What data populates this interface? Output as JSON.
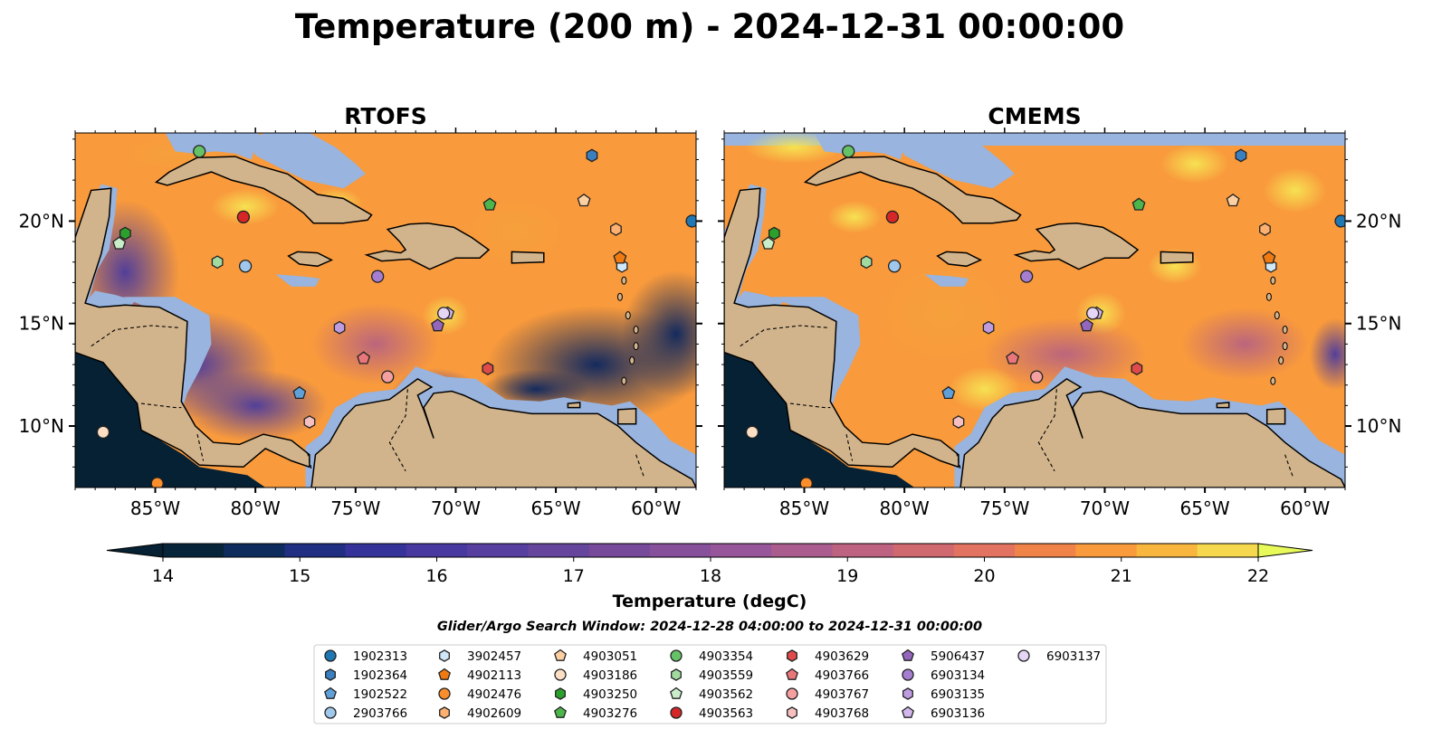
{
  "title": "Temperature (200 m) - 2024-12-31 00:00:00",
  "panels": [
    {
      "id": "rtofs",
      "title": "RTOFS"
    },
    {
      "id": "cmems",
      "title": "CMEMS"
    }
  ],
  "map": {
    "lon_range": [
      -89,
      -58
    ],
    "lat_range": [
      7,
      24.3
    ],
    "lon_ticks": [
      {
        "value": -85,
        "label": "85°W"
      },
      {
        "value": -80,
        "label": "80°W"
      },
      {
        "value": -75,
        "label": "75°W"
      },
      {
        "value": -70,
        "label": "70°W"
      },
      {
        "value": -65,
        "label": "65°W"
      },
      {
        "value": -60,
        "label": "60°W"
      }
    ],
    "lat_ticks": [
      {
        "value": 10,
        "label": "10°N"
      },
      {
        "value": 15,
        "label": "15°N"
      },
      {
        "value": 20,
        "label": "20°N"
      }
    ],
    "colors": {
      "land": "#d2b48c",
      "shelf": "#98b4df",
      "coast": "#000000"
    }
  },
  "colorbar": {
    "label": "Temperature (degC)",
    "min": 14,
    "max": 22,
    "step": 0.5,
    "ticks": [
      14,
      15,
      16,
      17,
      18,
      19,
      20,
      21,
      22
    ],
    "colors": [
      "#07253a",
      "#0d2b5c",
      "#212f82",
      "#35339a",
      "#47399f",
      "#563f9e",
      "#66459c",
      "#76499a",
      "#87509a",
      "#98569a",
      "#aa5c8e",
      "#bd6280",
      "#d0686f",
      "#e17360",
      "#f08448",
      "#f99a3c",
      "#f9b63f",
      "#f5d84e"
    ],
    "under_color": "#062133",
    "over_color": "#e7fa5a"
  },
  "search_window": "Glider/Argo Search Window: 2024-12-28 04:00:00 to 2024-12-31 00:00:00",
  "floats": [
    {
      "id": "1902313",
      "marker": "circle",
      "color": "#1f77b4",
      "lon": -58.2,
      "lat": 20.0
    },
    {
      "id": "1902364",
      "marker": "hexagon",
      "color": "#3a7fc0",
      "lon": -63.2,
      "lat": 23.2
    },
    {
      "id": "1902522",
      "marker": "pentagon",
      "color": "#5fa0d9",
      "lon": -77.8,
      "lat": 11.6
    },
    {
      "id": "2903766",
      "marker": "circle",
      "color": "#9fc8ec",
      "lon": -80.5,
      "lat": 17.8
    },
    {
      "id": "3902457",
      "marker": "hexagon",
      "color": "#cfe7f8",
      "lon": -61.7,
      "lat": 17.8
    },
    {
      "id": "4902113",
      "marker": "pentagon",
      "color": "#f07a12",
      "lon": -61.8,
      "lat": 18.2
    },
    {
      "id": "4902476",
      "marker": "circle",
      "color": "#fb8e2c",
      "lon": -84.9,
      "lat": 7.2
    },
    {
      "id": "4902609",
      "marker": "hexagon",
      "color": "#fdb070",
      "lon": -62.0,
      "lat": 19.6
    },
    {
      "id": "4903051",
      "marker": "pentagon",
      "color": "#fdd0a2",
      "lon": -63.6,
      "lat": 21.0
    },
    {
      "id": "4903186",
      "marker": "circle",
      "color": "#fde0c4",
      "lon": -87.6,
      "lat": 9.7
    },
    {
      "id": "4903250",
      "marker": "hexagon",
      "color": "#2ca02c",
      "lon": -86.5,
      "lat": 19.4
    },
    {
      "id": "4903276",
      "marker": "pentagon",
      "color": "#4cb64c",
      "lon": -68.3,
      "lat": 20.8
    },
    {
      "id": "4903354",
      "marker": "circle",
      "color": "#66c266",
      "lon": -82.8,
      "lat": 23.4
    },
    {
      "id": "4903559",
      "marker": "hexagon",
      "color": "#a1dba1",
      "lon": -81.9,
      "lat": 18.0
    },
    {
      "id": "4903562",
      "marker": "pentagon",
      "color": "#c8edc8",
      "lon": -86.8,
      "lat": 18.9
    },
    {
      "id": "4903563",
      "marker": "circle",
      "color": "#d62728",
      "lon": -80.6,
      "lat": 20.2
    },
    {
      "id": "4903629",
      "marker": "hexagon",
      "color": "#df4a4b",
      "lon": -68.4,
      "lat": 12.8
    },
    {
      "id": "4903766",
      "marker": "pentagon",
      "color": "#e8767a",
      "lon": -74.6,
      "lat": 13.3
    },
    {
      "id": "4903767",
      "marker": "circle",
      "color": "#f4a0a0",
      "lon": -73.4,
      "lat": 12.4
    },
    {
      "id": "4903768",
      "marker": "hexagon",
      "color": "#f7c0c0",
      "lon": -77.3,
      "lat": 10.2
    },
    {
      "id": "5906437",
      "marker": "pentagon",
      "color": "#9467bd",
      "lon": -70.9,
      "lat": 14.9
    },
    {
      "id": "6903134",
      "marker": "circle",
      "color": "#a57ed0",
      "lon": -73.9,
      "lat": 17.3
    },
    {
      "id": "6903135",
      "marker": "hexagon",
      "color": "#bf9ce0",
      "lon": -75.8,
      "lat": 14.8
    },
    {
      "id": "6903136",
      "marker": "pentagon",
      "color": "#d2b6ec",
      "lon": -70.4,
      "lat": 15.5
    },
    {
      "id": "6903137",
      "marker": "circle",
      "color": "#e6d6f6",
      "lon": -70.6,
      "lat": 15.5
    }
  ]
}
